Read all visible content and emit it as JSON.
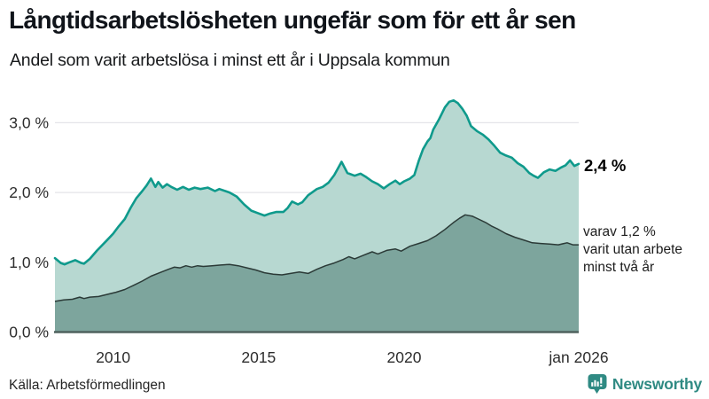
{
  "header": {
    "title": "Långtidsarbetslösheten ungefär som för ett år sen",
    "subtitle": "Andel som varit arbetslösa i minst ett år i Uppsala kommun"
  },
  "annotations": {
    "latest_value": "2,4 %",
    "note_lines": [
      "varav 1,2 %",
      "varit utan arbete",
      "minst två år"
    ]
  },
  "footer": {
    "source": "Källa: Arbetsförmedlingen",
    "brand": "Newsworthy"
  },
  "colors": {
    "line_primary": "#0f9a8c",
    "fill_primary": "#b7d8d1",
    "fill_secondary": "#7da59d",
    "line_secondary": "#2b3a37",
    "axis": "#4f625e",
    "grid": "#e4e4e9",
    "brand": "#2f8a83"
  },
  "chart_data": {
    "type": "area",
    "title": "Andel som varit arbetslösa i minst ett år i Uppsala kommun",
    "xlabel": "",
    "ylabel": "",
    "x_range_years": [
      2008,
      2026
    ],
    "ylim": [
      0,
      3.45
    ],
    "grid": true,
    "legend_position": "none",
    "y_ticks": [
      {
        "value": 0,
        "label": "0,0 %"
      },
      {
        "value": 1,
        "label": "1,0 %"
      },
      {
        "value": 2,
        "label": "2,0 %"
      },
      {
        "value": 3,
        "label": "3,0 %"
      }
    ],
    "x_ticks": [
      {
        "value": 2010,
        "label": "2010"
      },
      {
        "value": 2015,
        "label": "2015"
      },
      {
        "value": 2020,
        "label": "2020"
      },
      {
        "value": 2026,
        "label": "jan 2026"
      }
    ],
    "series": [
      {
        "name": "Andel arbetslösa minst ett år",
        "latest_label": "2,4 %",
        "points": [
          [
            2008.0,
            1.06
          ],
          [
            2008.2,
            0.99
          ],
          [
            2008.33,
            0.97
          ],
          [
            2008.5,
            1.0
          ],
          [
            2008.7,
            1.03
          ],
          [
            2008.9,
            0.99
          ],
          [
            2009.0,
            0.98
          ],
          [
            2009.2,
            1.05
          ],
          [
            2009.45,
            1.17
          ],
          [
            2009.75,
            1.3
          ],
          [
            2010.0,
            1.41
          ],
          [
            2010.2,
            1.52
          ],
          [
            2010.4,
            1.62
          ],
          [
            2010.6,
            1.78
          ],
          [
            2010.8,
            1.92
          ],
          [
            2011.0,
            2.02
          ],
          [
            2011.15,
            2.1
          ],
          [
            2011.3,
            2.2
          ],
          [
            2011.45,
            2.08
          ],
          [
            2011.55,
            2.15
          ],
          [
            2011.7,
            2.07
          ],
          [
            2011.85,
            2.12
          ],
          [
            2012.0,
            2.08
          ],
          [
            2012.2,
            2.04
          ],
          [
            2012.4,
            2.08
          ],
          [
            2012.6,
            2.04
          ],
          [
            2012.8,
            2.07
          ],
          [
            2013.0,
            2.05
          ],
          [
            2013.25,
            2.07
          ],
          [
            2013.5,
            2.02
          ],
          [
            2013.65,
            2.05
          ],
          [
            2014.0,
            2.0
          ],
          [
            2014.25,
            1.94
          ],
          [
            2014.5,
            1.83
          ],
          [
            2014.75,
            1.74
          ],
          [
            2015.0,
            1.7
          ],
          [
            2015.2,
            1.67
          ],
          [
            2015.4,
            1.7
          ],
          [
            2015.6,
            1.72
          ],
          [
            2015.85,
            1.72
          ],
          [
            2016.0,
            1.78
          ],
          [
            2016.15,
            1.87
          ],
          [
            2016.35,
            1.83
          ],
          [
            2016.5,
            1.86
          ],
          [
            2016.7,
            1.96
          ],
          [
            2017.0,
            2.05
          ],
          [
            2017.2,
            2.08
          ],
          [
            2017.4,
            2.14
          ],
          [
            2017.6,
            2.25
          ],
          [
            2017.85,
            2.44
          ],
          [
            2018.05,
            2.28
          ],
          [
            2018.3,
            2.24
          ],
          [
            2018.5,
            2.27
          ],
          [
            2018.7,
            2.22
          ],
          [
            2018.9,
            2.16
          ],
          [
            2019.1,
            2.12
          ],
          [
            2019.3,
            2.06
          ],
          [
            2019.5,
            2.12
          ],
          [
            2019.7,
            2.17
          ],
          [
            2019.85,
            2.12
          ],
          [
            2020.0,
            2.16
          ],
          [
            2020.2,
            2.2
          ],
          [
            2020.35,
            2.25
          ],
          [
            2020.5,
            2.45
          ],
          [
            2020.65,
            2.62
          ],
          [
            2020.8,
            2.73
          ],
          [
            2020.9,
            2.78
          ],
          [
            2021.0,
            2.9
          ],
          [
            2021.2,
            3.05
          ],
          [
            2021.4,
            3.22
          ],
          [
            2021.55,
            3.3
          ],
          [
            2021.7,
            3.32
          ],
          [
            2021.85,
            3.28
          ],
          [
            2022.0,
            3.2
          ],
          [
            2022.15,
            3.1
          ],
          [
            2022.3,
            2.95
          ],
          [
            2022.5,
            2.88
          ],
          [
            2022.7,
            2.83
          ],
          [
            2022.9,
            2.76
          ],
          [
            2023.1,
            2.67
          ],
          [
            2023.3,
            2.57
          ],
          [
            2023.5,
            2.53
          ],
          [
            2023.7,
            2.5
          ],
          [
            2023.9,
            2.42
          ],
          [
            2024.1,
            2.37
          ],
          [
            2024.3,
            2.28
          ],
          [
            2024.45,
            2.24
          ],
          [
            2024.6,
            2.21
          ],
          [
            2024.8,
            2.29
          ],
          [
            2025.0,
            2.33
          ],
          [
            2025.2,
            2.31
          ],
          [
            2025.4,
            2.36
          ],
          [
            2025.55,
            2.39
          ],
          [
            2025.7,
            2.46
          ],
          [
            2025.85,
            2.38
          ],
          [
            2026.0,
            2.41
          ]
        ]
      },
      {
        "name": "Andel som varit utan arbete minst två år",
        "latest_label": "1,2 %",
        "points": [
          [
            2008.0,
            0.44
          ],
          [
            2008.3,
            0.46
          ],
          [
            2008.6,
            0.47
          ],
          [
            2008.85,
            0.5
          ],
          [
            2009.0,
            0.48
          ],
          [
            2009.2,
            0.5
          ],
          [
            2009.5,
            0.51
          ],
          [
            2009.8,
            0.54
          ],
          [
            2010.1,
            0.57
          ],
          [
            2010.4,
            0.61
          ],
          [
            2010.7,
            0.67
          ],
          [
            2011.0,
            0.73
          ],
          [
            2011.3,
            0.8
          ],
          [
            2011.6,
            0.85
          ],
          [
            2011.9,
            0.9
          ],
          [
            2012.1,
            0.93
          ],
          [
            2012.3,
            0.92
          ],
          [
            2012.5,
            0.95
          ],
          [
            2012.7,
            0.93
          ],
          [
            2012.9,
            0.95
          ],
          [
            2013.1,
            0.94
          ],
          [
            2013.4,
            0.95
          ],
          [
            2013.7,
            0.96
          ],
          [
            2014.0,
            0.97
          ],
          [
            2014.3,
            0.95
          ],
          [
            2014.6,
            0.92
          ],
          [
            2014.9,
            0.89
          ],
          [
            2015.2,
            0.85
          ],
          [
            2015.5,
            0.83
          ],
          [
            2015.8,
            0.82
          ],
          [
            2016.1,
            0.84
          ],
          [
            2016.4,
            0.86
          ],
          [
            2016.7,
            0.84
          ],
          [
            2017.0,
            0.9
          ],
          [
            2017.3,
            0.95
          ],
          [
            2017.6,
            0.99
          ],
          [
            2017.9,
            1.04
          ],
          [
            2018.1,
            1.08
          ],
          [
            2018.3,
            1.05
          ],
          [
            2018.6,
            1.1
          ],
          [
            2018.9,
            1.15
          ],
          [
            2019.1,
            1.12
          ],
          [
            2019.4,
            1.17
          ],
          [
            2019.7,
            1.19
          ],
          [
            2019.9,
            1.16
          ],
          [
            2020.2,
            1.23
          ],
          [
            2020.5,
            1.27
          ],
          [
            2020.8,
            1.31
          ],
          [
            2021.1,
            1.38
          ],
          [
            2021.4,
            1.47
          ],
          [
            2021.7,
            1.57
          ],
          [
            2021.9,
            1.63
          ],
          [
            2022.1,
            1.68
          ],
          [
            2022.35,
            1.66
          ],
          [
            2022.55,
            1.62
          ],
          [
            2022.8,
            1.57
          ],
          [
            2023.0,
            1.52
          ],
          [
            2023.2,
            1.48
          ],
          [
            2023.5,
            1.41
          ],
          [
            2023.8,
            1.36
          ],
          [
            2024.1,
            1.32
          ],
          [
            2024.4,
            1.28
          ],
          [
            2024.7,
            1.27
          ],
          [
            2025.0,
            1.26
          ],
          [
            2025.3,
            1.25
          ],
          [
            2025.6,
            1.28
          ],
          [
            2025.8,
            1.25
          ],
          [
            2026.0,
            1.25
          ]
        ]
      }
    ]
  }
}
